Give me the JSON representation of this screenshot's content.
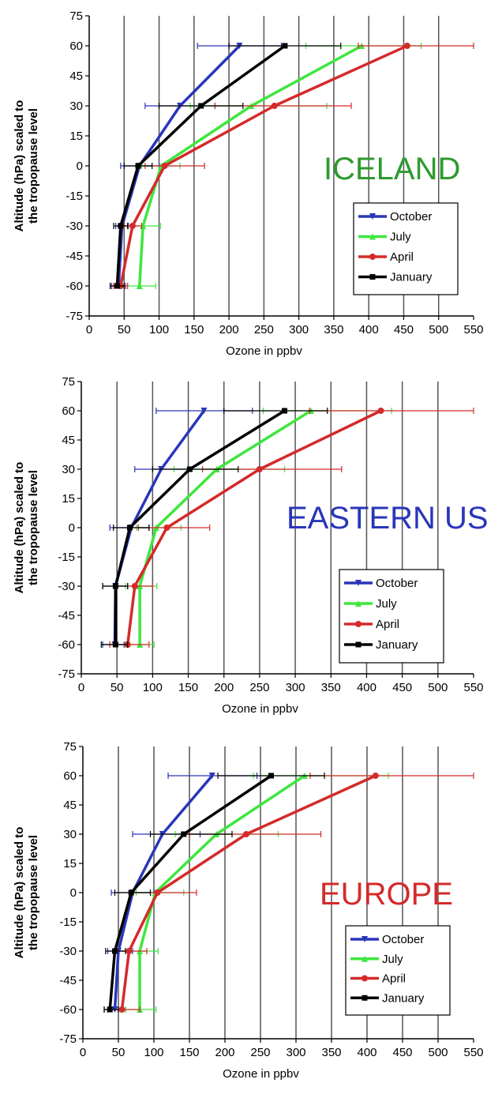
{
  "chart_data": [
    {
      "type": "line",
      "region_label": "ICELAND",
      "region_color": "#2e9a2e",
      "xlabel": "Ozone in ppbv",
      "ylabel_lines": [
        "Altitude (hPa) scaled to",
        "the tropopause level"
      ],
      "xlim": [
        0,
        550
      ],
      "ylim": [
        -75,
        75
      ],
      "xticks": [
        "0",
        "50",
        "100",
        "150",
        "200",
        "250",
        "300",
        "350",
        "400",
        "450",
        "500",
        "550"
      ],
      "yticks": [
        "75",
        "60",
        "45",
        "30",
        "15",
        "0",
        "-15",
        "-30",
        "-45",
        "-60",
        "-75"
      ],
      "series": [
        {
          "name": "October",
          "color": "#2a36b8",
          "marker": "triangle-down",
          "points": [
            [
              42,
              -60
            ],
            [
              47,
              -30
            ],
            [
              72,
              0
            ],
            [
              130,
              30
            ],
            [
              215,
              60
            ]
          ],
          "xerr": [
            [
              32,
              52
            ],
            [
              38,
              56
            ],
            [
              45,
              100
            ],
            [
              80,
              180
            ],
            [
              155,
              275
            ]
          ]
        },
        {
          "name": "July",
          "color": "#3ee63e",
          "marker": "triangle-up",
          "points": [
            [
              72,
              -60
            ],
            [
              77,
              -30
            ],
            [
              103,
              0
            ],
            [
              232,
              30
            ],
            [
              390,
              60
            ]
          ],
          "xerr": [
            [
              50,
              95
            ],
            [
              55,
              102
            ],
            [
              75,
              130
            ],
            [
              145,
              340
            ],
            [
              310,
              475
            ]
          ]
        },
        {
          "name": "April",
          "color": "#d42a2a",
          "marker": "circle",
          "points": [
            [
              45,
              -60
            ],
            [
              62,
              -30
            ],
            [
              108,
              0
            ],
            [
              265,
              30
            ],
            [
              455,
              60
            ]
          ],
          "xerr": [
            [
              35,
              55
            ],
            [
              50,
              75
            ],
            [
              80,
              165
            ],
            [
              180,
              375
            ],
            [
              385,
              550
            ]
          ]
        },
        {
          "name": "January",
          "color": "#000000",
          "marker": "square",
          "points": [
            [
              40,
              -60
            ],
            [
              45,
              -30
            ],
            [
              70,
              0
            ],
            [
              160,
              30
            ],
            [
              280,
              60
            ]
          ],
          "xerr": [
            [
              30,
              50
            ],
            [
              35,
              55
            ],
            [
              50,
              90
            ],
            [
              100,
              220
            ],
            [
              200,
              360
            ]
          ]
        }
      ]
    },
    {
      "type": "line",
      "region_label": "EASTERN US",
      "region_color": "#2a36b8",
      "xlabel": "Ozone in ppbv",
      "ylabel_lines": [
        "Altitude (hPa) scaled to",
        "the tropopause level"
      ],
      "xlim": [
        0,
        550
      ],
      "ylim": [
        -75,
        75
      ],
      "xticks": [
        "0",
        "50",
        "100",
        "150",
        "200",
        "250",
        "300",
        "350",
        "400",
        "450",
        "500",
        "550"
      ],
      "yticks": [
        "75",
        "60",
        "45",
        "30",
        "15",
        "0",
        "-15",
        "-30",
        "-45",
        "-60",
        "-75"
      ],
      "series": [
        {
          "name": "October",
          "color": "#2a36b8",
          "marker": "triangle-down",
          "points": [
            [
              47,
              -60
            ],
            [
              48,
              -30
            ],
            [
              70,
              0
            ],
            [
              112,
              30
            ],
            [
              172,
              60
            ]
          ],
          "xerr": [
            [
              30,
              60
            ],
            [
              30,
              65
            ],
            [
              40,
              95
            ],
            [
              75,
              150
            ],
            [
              105,
              240
            ]
          ]
        },
        {
          "name": "July",
          "color": "#3ee63e",
          "marker": "triangle-up",
          "points": [
            [
              82,
              -60
            ],
            [
              82,
              -30
            ],
            [
              105,
              0
            ],
            [
              190,
              30
            ],
            [
              322,
              60
            ]
          ],
          "xerr": [
            [
              62,
              102
            ],
            [
              62,
              106
            ],
            [
              78,
              140
            ],
            [
              130,
              285
            ],
            [
              255,
              435
            ]
          ]
        },
        {
          "name": "April",
          "color": "#d42a2a",
          "marker": "circle",
          "points": [
            [
              65,
              -60
            ],
            [
              75,
              -30
            ],
            [
              120,
              0
            ],
            [
              250,
              30
            ],
            [
              420,
              60
            ]
          ],
          "xerr": [
            [
              40,
              95
            ],
            [
              50,
              100
            ],
            [
              80,
              180
            ],
            [
              170,
              365
            ],
            [
              320,
              550
            ]
          ]
        },
        {
          "name": "January",
          "color": "#000000",
          "marker": "square",
          "points": [
            [
              48,
              -60
            ],
            [
              48,
              -30
            ],
            [
              68,
              0
            ],
            [
              152,
              30
            ],
            [
              285,
              60
            ]
          ],
          "xerr": [
            [
              28,
              65
            ],
            [
              30,
              65
            ],
            [
              45,
              95
            ],
            [
              100,
              220
            ],
            [
              200,
              345
            ]
          ]
        }
      ]
    },
    {
      "type": "line",
      "region_label": "EUROPE",
      "region_color": "#d42a2a",
      "xlabel": "Ozone in ppbv",
      "ylabel_lines": [
        "Altitude (hPa) scaled to",
        "the tropopause level"
      ],
      "xlim": [
        0,
        550
      ],
      "ylim": [
        -75,
        75
      ],
      "xticks": [
        "0",
        "50",
        "100",
        "150",
        "200",
        "250",
        "300",
        "350",
        "400",
        "450",
        "500",
        "550"
      ],
      "yticks": [
        "75",
        "60",
        "45",
        "30",
        "15",
        "0",
        "-15",
        "-30",
        "-45",
        "-60",
        "-75"
      ],
      "series": [
        {
          "name": "October",
          "color": "#2a36b8",
          "marker": "triangle-down",
          "points": [
            [
              45,
              -60
            ],
            [
              50,
              -30
            ],
            [
              70,
              0
            ],
            [
              112,
              30
            ],
            [
              182,
              60
            ]
          ],
          "xerr": [
            [
              30,
              60
            ],
            [
              35,
              70
            ],
            [
              40,
              100
            ],
            [
              70,
              165
            ],
            [
              120,
              245
            ]
          ]
        },
        {
          "name": "July",
          "color": "#3ee63e",
          "marker": "triangle-up",
          "points": [
            [
              80,
              -60
            ],
            [
              80,
              -30
            ],
            [
              102,
              0
            ],
            [
              188,
              30
            ],
            [
              312,
              60
            ]
          ],
          "xerr": [
            [
              60,
              103
            ],
            [
              60,
              106
            ],
            [
              75,
              142
            ],
            [
              130,
              275
            ],
            [
              240,
              430
            ]
          ]
        },
        {
          "name": "April",
          "color": "#d42a2a",
          "marker": "circle",
          "points": [
            [
              55,
              -60
            ],
            [
              65,
              -30
            ],
            [
              105,
              0
            ],
            [
              230,
              30
            ],
            [
              412,
              60
            ]
          ],
          "xerr": [
            [
              35,
              80
            ],
            [
              45,
              90
            ],
            [
              70,
              160
            ],
            [
              150,
              335
            ],
            [
              320,
              550
            ]
          ]
        },
        {
          "name": "January",
          "color": "#000000",
          "marker": "square",
          "points": [
            [
              38,
              -60
            ],
            [
              45,
              -30
            ],
            [
              68,
              0
            ],
            [
              142,
              30
            ],
            [
              265,
              60
            ]
          ],
          "xerr": [
            [
              30,
              50
            ],
            [
              32,
              60
            ],
            [
              45,
              95
            ],
            [
              95,
              210
            ],
            [
              190,
              340
            ]
          ]
        }
      ]
    }
  ]
}
